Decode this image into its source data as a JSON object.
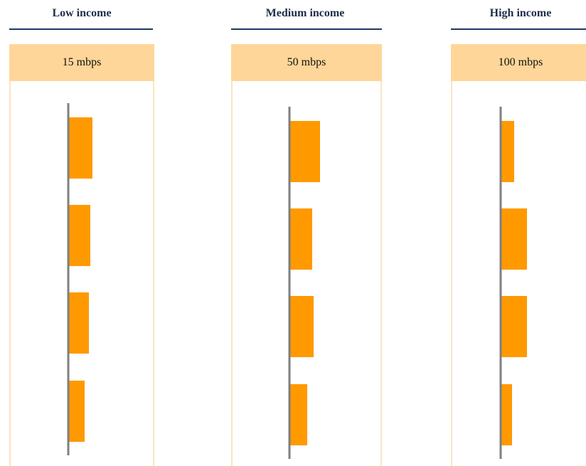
{
  "chart_data": [
    {
      "type": "bar",
      "orientation": "horizontal",
      "title": "Low income",
      "subtitle": "15 mbps",
      "categories": [
        "",
        "",
        "",
        ""
      ],
      "values": [
        33,
        30,
        28,
        22
      ],
      "xlim": [
        0,
        100
      ],
      "colors": {
        "bar": "#ff9900",
        "axis": "#7f7f7f",
        "box": "#ffd699",
        "rule": "#1f3864"
      }
    },
    {
      "type": "bar",
      "orientation": "horizontal",
      "title": "Medium income",
      "subtitle": "50 mbps",
      "categories": [
        "",
        "",
        "",
        ""
      ],
      "values": [
        42,
        31,
        33,
        24
      ],
      "xlim": [
        0,
        100
      ],
      "colors": {
        "bar": "#ff9900",
        "axis": "#7f7f7f",
        "box": "#ffd699",
        "rule": "#1f3864"
      }
    },
    {
      "type": "bar",
      "orientation": "horizontal",
      "title": "High income",
      "subtitle": "100 mbps",
      "categories": [
        "",
        "",
        "",
        ""
      ],
      "values": [
        18,
        36,
        36,
        15
      ],
      "xlim": [
        0,
        100
      ],
      "colors": {
        "bar": "#ff9900",
        "axis": "#7f7f7f",
        "box": "#ffd699",
        "rule": "#1f3864"
      }
    }
  ]
}
